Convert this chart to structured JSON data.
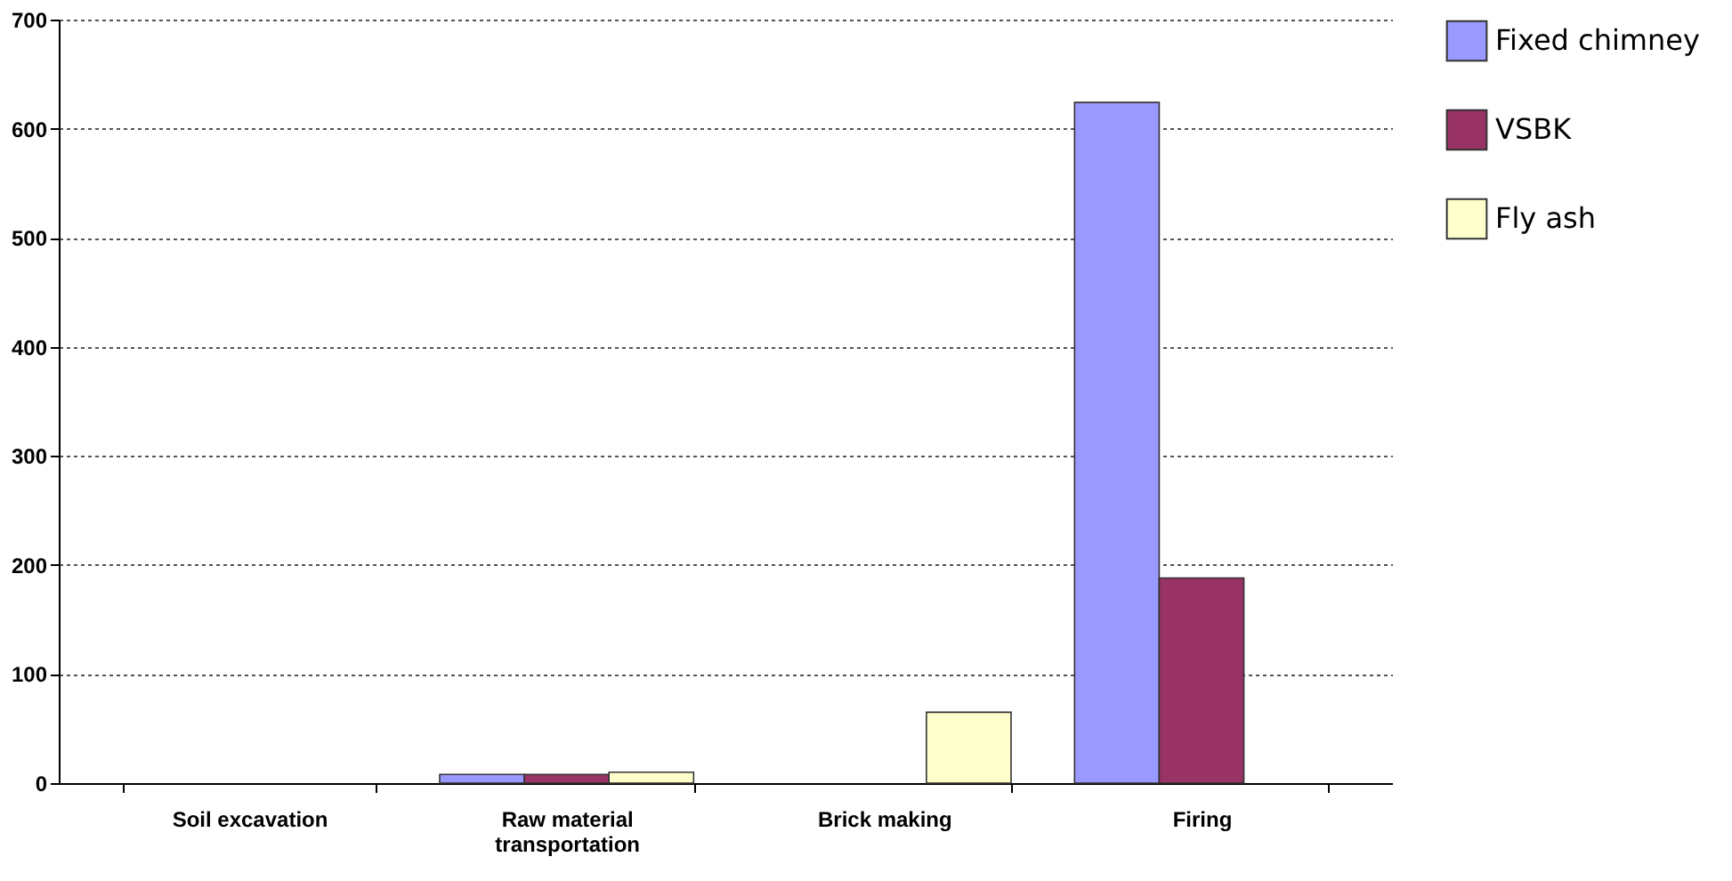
{
  "chart_data": {
    "type": "bar",
    "categories": [
      "Soil excavation",
      "Raw material transportation",
      "Brick making",
      "Firing"
    ],
    "series": [
      {
        "name": "Fixed chimney",
        "color": "#9999ff",
        "values": [
          0,
          8,
          null,
          624
        ]
      },
      {
        "name": "VSBK",
        "color": "#993366",
        "values": [
          0,
          8,
          null,
          188
        ]
      },
      {
        "name": "Fly ash",
        "color": "#ffffcc",
        "values": [
          0,
          10,
          65,
          0
        ]
      }
    ],
    "ylim": [
      0,
      700
    ],
    "yticks": [
      0,
      100,
      200,
      300,
      400,
      500,
      600,
      700
    ],
    "grid": "y",
    "legend": "right"
  }
}
